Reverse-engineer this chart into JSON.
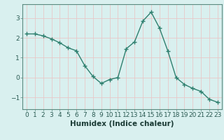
{
  "x": [
    0,
    1,
    2,
    3,
    4,
    5,
    6,
    7,
    8,
    9,
    10,
    11,
    12,
    13,
    14,
    15,
    16,
    17,
    18,
    19,
    20,
    21,
    22,
    23
  ],
  "y": [
    2.2,
    2.2,
    2.1,
    1.95,
    1.75,
    1.5,
    1.35,
    0.6,
    0.05,
    -0.3,
    -0.1,
    0.0,
    1.45,
    1.8,
    2.85,
    3.3,
    2.5,
    1.35,
    0.0,
    -0.35,
    -0.55,
    -0.7,
    -1.1,
    -1.25
  ],
  "line_color": "#2e7f6e",
  "marker": "+",
  "marker_size": 4,
  "linewidth": 1.0,
  "bg_color": "#d9f0ef",
  "grid_color": "#e8c8c8",
  "xlabel": "Humidex (Indice chaleur)",
  "ylabel": "",
  "xlim": [
    -0.5,
    23.5
  ],
  "ylim": [
    -1.6,
    3.7
  ],
  "yticks": [
    -1,
    0,
    1,
    2,
    3
  ],
  "tick_fontsize": 6.5,
  "xlabel_fontsize": 7.5,
  "axis_color": "#5a8a80"
}
